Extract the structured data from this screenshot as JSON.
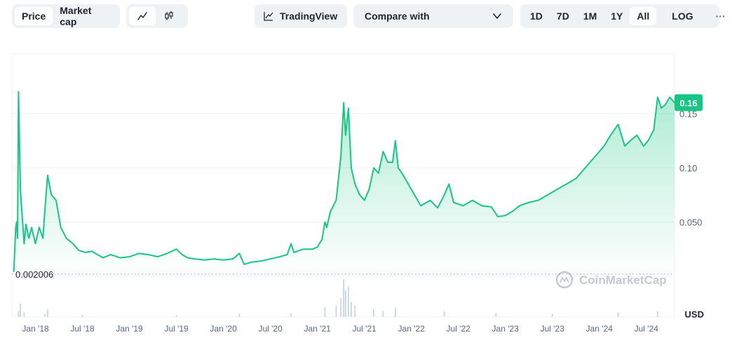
{
  "toolbar": {
    "type_tabs": [
      "Price",
      "Market cap"
    ],
    "active_type": "Price",
    "tradingview_label": "TradingView",
    "compare_label": "Compare with",
    "ranges": [
      "1D",
      "7D",
      "1M",
      "1Y",
      "All"
    ],
    "active_range": "All",
    "log_label": "LOG",
    "more_label": "···"
  },
  "colors": {
    "accent": "#16c784",
    "grid": "#eff2f5",
    "axis_text": "#58667e",
    "background": "#ffffff",
    "volume": "#cfd6e4"
  },
  "icons": {
    "line_chart": "line-chart-icon",
    "candlestick": "candlestick-icon",
    "tradingview": "tradingview-icon",
    "compare_dropdown": "chevron-down-icon",
    "more": "more-icon"
  },
  "watermark": "CoinMarketCap",
  "chart_data": {
    "type": "area",
    "title": "",
    "xlabel": "",
    "ylabel": "",
    "currency_label": "USD",
    "y_ticks": [
      0.05,
      0.1,
      0.15
    ],
    "y_tick_labels": [
      "0.050",
      "0.10",
      "0.15"
    ],
    "x_ticks": [
      {
        "t": 2018.0,
        "label": "Jan '18"
      },
      {
        "t": 2018.5,
        "label": "Jul '18"
      },
      {
        "t": 2019.0,
        "label": "Jan '19"
      },
      {
        "t": 2019.5,
        "label": "Jul '19"
      },
      {
        "t": 2020.0,
        "label": "Jan '20"
      },
      {
        "t": 2020.5,
        "label": "Jul '20"
      },
      {
        "t": 2021.0,
        "label": "Jan '21"
      },
      {
        "t": 2021.5,
        "label": "Jul '21"
      },
      {
        "t": 2022.0,
        "label": "Jan '22"
      },
      {
        "t": 2022.5,
        "label": "Jul '22"
      },
      {
        "t": 2023.0,
        "label": "Jan '23"
      },
      {
        "t": 2023.5,
        "label": "Jul '23"
      },
      {
        "t": 2024.0,
        "label": "Jan '24"
      },
      {
        "t": 2024.5,
        "label": "Jul '24"
      }
    ],
    "xlim": [
      2017.75,
      2024.8
    ],
    "ylim": [
      0.0,
      0.205
    ],
    "baseline_price": 0.002006,
    "baseline_label": "0.002006",
    "current_price_label": "0.16",
    "grid": true,
    "series": [
      {
        "values": [
          [
            2017.77,
            0.004
          ],
          [
            2017.79,
            0.045
          ],
          [
            2017.8,
            0.05
          ],
          [
            2017.81,
            0.035
          ],
          [
            2017.82,
            0.17
          ],
          [
            2017.84,
            0.08
          ],
          [
            2017.86,
            0.055
          ],
          [
            2017.88,
            0.03
          ],
          [
            2017.9,
            0.048
          ],
          [
            2017.93,
            0.035
          ],
          [
            2017.96,
            0.045
          ],
          [
            2018.0,
            0.03
          ],
          [
            2018.04,
            0.045
          ],
          [
            2018.08,
            0.035
          ],
          [
            2018.1,
            0.06
          ],
          [
            2018.13,
            0.093
          ],
          [
            2018.17,
            0.075
          ],
          [
            2018.22,
            0.07
          ],
          [
            2018.27,
            0.045
          ],
          [
            2018.33,
            0.035
          ],
          [
            2018.4,
            0.03
          ],
          [
            2018.46,
            0.024
          ],
          [
            2018.53,
            0.022
          ],
          [
            2018.6,
            0.023
          ],
          [
            2018.66,
            0.02
          ],
          [
            2018.72,
            0.017
          ],
          [
            2018.8,
            0.02
          ],
          [
            2018.9,
            0.017
          ],
          [
            2019.0,
            0.018
          ],
          [
            2019.1,
            0.021
          ],
          [
            2019.2,
            0.02
          ],
          [
            2019.3,
            0.018
          ],
          [
            2019.4,
            0.021
          ],
          [
            2019.5,
            0.025
          ],
          [
            2019.56,
            0.02
          ],
          [
            2019.62,
            0.017
          ],
          [
            2019.7,
            0.016
          ],
          [
            2019.8,
            0.015
          ],
          [
            2019.9,
            0.016
          ],
          [
            2020.0,
            0.015
          ],
          [
            2020.1,
            0.016
          ],
          [
            2020.17,
            0.021
          ],
          [
            2020.22,
            0.011
          ],
          [
            2020.3,
            0.013
          ],
          [
            2020.4,
            0.014
          ],
          [
            2020.5,
            0.016
          ],
          [
            2020.6,
            0.018
          ],
          [
            2020.68,
            0.02
          ],
          [
            2020.72,
            0.03
          ],
          [
            2020.75,
            0.022
          ],
          [
            2020.85,
            0.025
          ],
          [
            2020.95,
            0.025
          ],
          [
            2021.0,
            0.027
          ],
          [
            2021.05,
            0.034
          ],
          [
            2021.08,
            0.05
          ],
          [
            2021.1,
            0.045
          ],
          [
            2021.14,
            0.06
          ],
          [
            2021.2,
            0.07
          ],
          [
            2021.25,
            0.11
          ],
          [
            2021.28,
            0.16
          ],
          [
            2021.3,
            0.13
          ],
          [
            2021.33,
            0.155
          ],
          [
            2021.36,
            0.1
          ],
          [
            2021.4,
            0.085
          ],
          [
            2021.45,
            0.075
          ],
          [
            2021.5,
            0.07
          ],
          [
            2021.55,
            0.08
          ],
          [
            2021.6,
            0.1
          ],
          [
            2021.65,
            0.095
          ],
          [
            2021.7,
            0.115
          ],
          [
            2021.75,
            0.105
          ],
          [
            2021.8,
            0.105
          ],
          [
            2021.83,
            0.125
          ],
          [
            2021.86,
            0.1
          ],
          [
            2021.9,
            0.095
          ],
          [
            2022.0,
            0.08
          ],
          [
            2022.1,
            0.065
          ],
          [
            2022.2,
            0.07
          ],
          [
            2022.28,
            0.063
          ],
          [
            2022.35,
            0.075
          ],
          [
            2022.4,
            0.085
          ],
          [
            2022.45,
            0.068
          ],
          [
            2022.55,
            0.065
          ],
          [
            2022.65,
            0.07
          ],
          [
            2022.75,
            0.065
          ],
          [
            2022.85,
            0.064
          ],
          [
            2022.92,
            0.055
          ],
          [
            2023.0,
            0.056
          ],
          [
            2023.08,
            0.06
          ],
          [
            2023.15,
            0.065
          ],
          [
            2023.25,
            0.068
          ],
          [
            2023.35,
            0.07
          ],
          [
            2023.45,
            0.075
          ],
          [
            2023.55,
            0.08
          ],
          [
            2023.65,
            0.085
          ],
          [
            2023.75,
            0.09
          ],
          [
            2023.85,
            0.1
          ],
          [
            2023.95,
            0.11
          ],
          [
            2024.05,
            0.12
          ],
          [
            2024.12,
            0.13
          ],
          [
            2024.2,
            0.14
          ],
          [
            2024.27,
            0.12
          ],
          [
            2024.33,
            0.125
          ],
          [
            2024.4,
            0.13
          ],
          [
            2024.47,
            0.12
          ],
          [
            2024.52,
            0.125
          ],
          [
            2024.58,
            0.135
          ],
          [
            2024.62,
            0.165
          ],
          [
            2024.66,
            0.155
          ],
          [
            2024.7,
            0.158
          ],
          [
            2024.75,
            0.165
          ],
          [
            2024.8,
            0.16
          ]
        ]
      }
    ]
  },
  "volume_data": [
    [
      2017.82,
      0.15
    ],
    [
      2017.84,
      0.35
    ],
    [
      2017.88,
      0.12
    ],
    [
      2018.1,
      0.08
    ],
    [
      2018.13,
      0.2
    ],
    [
      2018.5,
      0.05
    ],
    [
      2019.5,
      0.05
    ],
    [
      2020.17,
      0.08
    ],
    [
      2020.72,
      0.1
    ],
    [
      2021.08,
      0.25
    ],
    [
      2021.2,
      0.3
    ],
    [
      2021.25,
      0.5
    ],
    [
      2021.28,
      1.0
    ],
    [
      2021.3,
      0.7
    ],
    [
      2021.33,
      0.8
    ],
    [
      2021.36,
      0.4
    ],
    [
      2021.4,
      0.3
    ],
    [
      2021.6,
      0.2
    ],
    [
      2021.7,
      0.15
    ],
    [
      2021.83,
      0.25
    ],
    [
      2022.35,
      0.15
    ],
    [
      2022.9,
      0.1
    ],
    [
      2023.5,
      0.08
    ],
    [
      2024.2,
      0.12
    ],
    [
      2024.62,
      0.15
    ]
  ]
}
